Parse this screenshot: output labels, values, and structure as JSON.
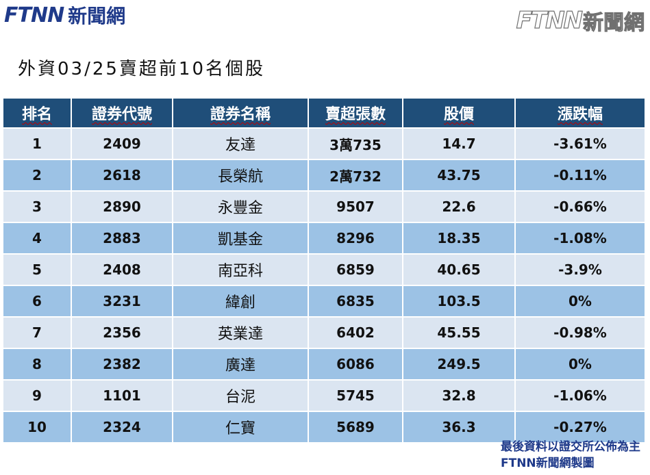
{
  "header": {
    "logo_left_latin": "FTNN",
    "logo_left_cn": "新聞網",
    "logo_right_latin": "FTNN",
    "logo_right_cn": "新聞網"
  },
  "title": "外資03/25賣超前10名個股",
  "table": {
    "columns": [
      "排名",
      "證券代號",
      "證券名稱",
      "賣超張數",
      "股價",
      "漲跌幅"
    ],
    "rows": [
      [
        "1",
        "2409",
        "友達",
        "3萬735",
        "14.7",
        "-3.61%"
      ],
      [
        "2",
        "2618",
        "長榮航",
        "2萬732",
        "43.75",
        "-0.11%"
      ],
      [
        "3",
        "2890",
        "永豐金",
        "9507",
        "22.6",
        "-0.66%"
      ],
      [
        "4",
        "2883",
        "凱基金",
        "8296",
        "18.35",
        "-1.08%"
      ],
      [
        "5",
        "2408",
        "南亞科",
        "6859",
        "40.65",
        "-3.9%"
      ],
      [
        "6",
        "3231",
        "緯創",
        "6835",
        "103.5",
        "0%"
      ],
      [
        "7",
        "2356",
        "英業達",
        "6402",
        "45.55",
        "-0.98%"
      ],
      [
        "8",
        "2382",
        "廣達",
        "6086",
        "249.5",
        "0%"
      ],
      [
        "9",
        "1101",
        "台泥",
        "5745",
        "32.8",
        "-1.06%"
      ],
      [
        "10",
        "2324",
        "仁寶",
        "5689",
        "36.3",
        "-0.27%"
      ]
    ]
  },
  "footer": {
    "line1": "最後資料以證交所公佈為主",
    "line2": "FTNN新聞網製圖"
  },
  "colors": {
    "header_bg": "#1f4e79",
    "row_light": "#dbe5f1",
    "row_dark": "#9cc2e5",
    "brand_blue": "#1f3a8a",
    "brand_orange": "#ee7d1c"
  }
}
